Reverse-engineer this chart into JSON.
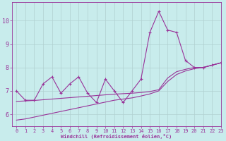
{
  "x": [
    0,
    1,
    2,
    3,
    4,
    5,
    6,
    7,
    8,
    9,
    10,
    11,
    12,
    13,
    14,
    15,
    16,
    17,
    18,
    19,
    20,
    21,
    22,
    23
  ],
  "y_main": [
    7.0,
    6.6,
    6.6,
    7.3,
    7.6,
    6.9,
    7.3,
    7.6,
    6.9,
    6.5,
    7.5,
    7.0,
    6.5,
    7.0,
    7.5,
    9.5,
    10.4,
    9.6,
    9.5,
    8.3,
    8.0,
    8.0,
    8.1,
    8.2
  ],
  "y_line1": [
    5.75,
    5.8,
    5.88,
    5.96,
    6.04,
    6.12,
    6.2,
    6.28,
    6.36,
    6.44,
    6.52,
    6.6,
    6.65,
    6.7,
    6.78,
    6.87,
    7.0,
    7.4,
    7.7,
    7.85,
    7.95,
    8.0,
    8.1,
    8.2
  ],
  "y_line2": [
    6.55,
    6.57,
    6.59,
    6.62,
    6.65,
    6.68,
    6.71,
    6.74,
    6.77,
    6.8,
    6.83,
    6.86,
    6.88,
    6.9,
    6.93,
    6.97,
    7.05,
    7.55,
    7.82,
    7.92,
    8.0,
    8.0,
    8.1,
    8.2
  ],
  "color": "#993399",
  "bg_color": "#c8ecec",
  "grid_color": "#b0d0d0",
  "xlabel": "Windchill (Refroidissement éolien,°C)",
  "ylim": [
    5.5,
    10.8
  ],
  "xlim": [
    -0.5,
    23
  ],
  "yticks": [
    6,
    7,
    8,
    9,
    10
  ],
  "xticks": [
    0,
    1,
    2,
    3,
    4,
    5,
    6,
    7,
    8,
    9,
    10,
    11,
    12,
    13,
    14,
    15,
    16,
    17,
    18,
    19,
    20,
    21,
    22,
    23
  ],
  "tick_fontsize": 5,
  "xlabel_fontsize": 5,
  "linewidth": 0.8,
  "marker_size": 3
}
